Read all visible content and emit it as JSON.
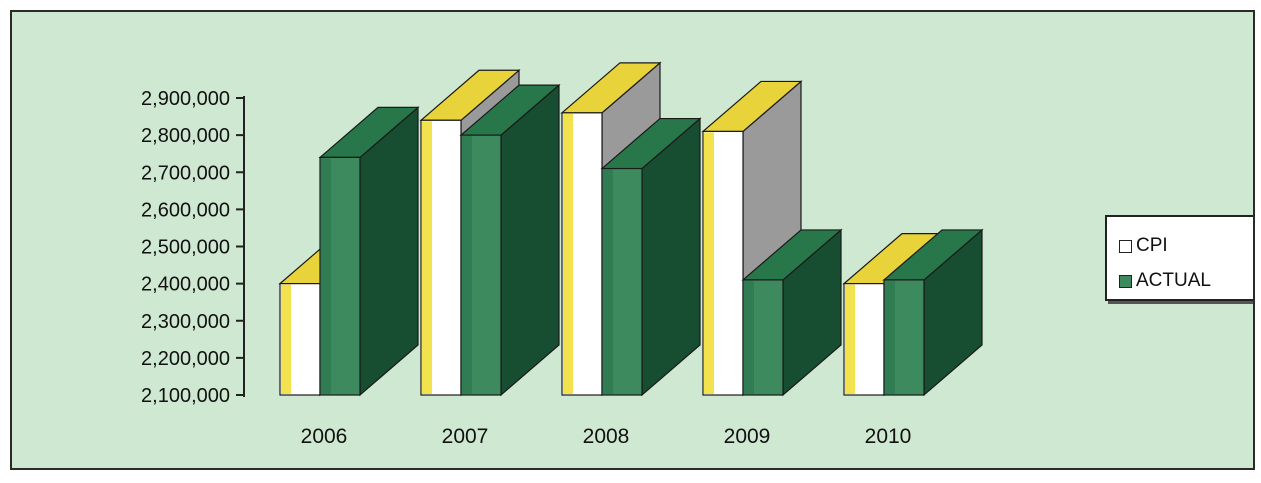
{
  "chart_data": {
    "type": "bar",
    "categories": [
      "2006",
      "2007",
      "2008",
      "2009",
      "2010"
    ],
    "series": [
      {
        "name": "CPI",
        "values": [
          2400000,
          2840000,
          2860000,
          2810000,
          2400000
        ],
        "color": "#ffffff",
        "top_color": "#e8d33b",
        "side_color": "#9a9a9a"
      },
      {
        "name": "ACTUAL",
        "values": [
          2740000,
          2800000,
          2710000,
          2410000,
          2410000
        ],
        "color": "#3e8a5f",
        "top_color": "#27774a",
        "side_color": "#174d31"
      }
    ],
    "ylim": [
      2100000,
      2900000
    ],
    "yticks": [
      2100000,
      2200000,
      2300000,
      2400000,
      2500000,
      2600000,
      2700000,
      2800000,
      2900000
    ],
    "ytick_labels": [
      "2,100,000",
      "2,200,000",
      "2,300,000",
      "2,400,000",
      "2,500,000",
      "2,600,000",
      "2,700,000",
      "2,800,000",
      "2,900,000"
    ],
    "legend_position": "right",
    "background_color": "#cfe8d1",
    "style": "3d-bar"
  },
  "legend": {
    "cpi_label": "CPI",
    "actual_label": "ACTUAL"
  }
}
